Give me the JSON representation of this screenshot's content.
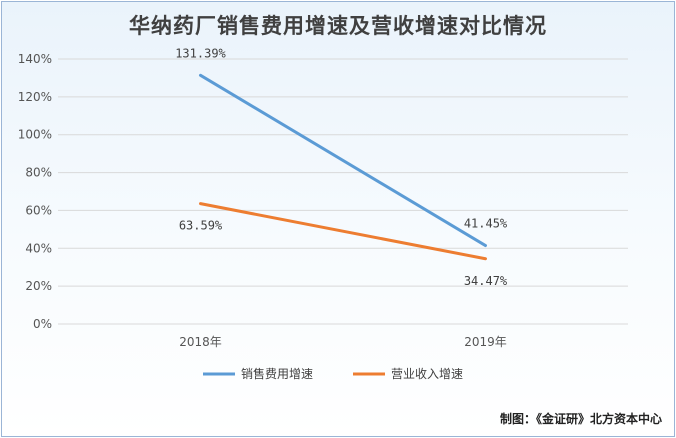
{
  "colors": {
    "series1": "#5b9bd5",
    "series2": "#ed7d31",
    "grid": "#d9d9d9"
  },
  "credit": "制图：《金证研》北方资本中心",
  "chart_data": {
    "type": "line",
    "title": "华纳药厂销售费用增速及营收增速对比情况",
    "categories": [
      "2018年",
      "2019年"
    ],
    "series": [
      {
        "name": "销售费用增速",
        "values": [
          131.39,
          41.45
        ],
        "labels": [
          "131.39%",
          "41.45%"
        ]
      },
      {
        "name": "营业收入增速",
        "values": [
          63.59,
          34.47
        ],
        "labels": [
          "63.59%",
          "34.47%"
        ]
      }
    ],
    "ylim": [
      0,
      140
    ],
    "yticks": [
      "0%",
      "20%",
      "40%",
      "60%",
      "80%",
      "100%",
      "120%",
      "140%"
    ],
    "grid": true,
    "legend": "bottom"
  }
}
